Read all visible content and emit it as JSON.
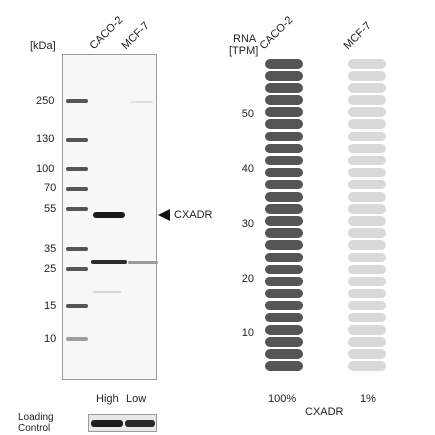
{
  "blot": {
    "kda_label": "[kDa]",
    "lanes": [
      "CACO-2",
      "MCF-7"
    ],
    "markers": [
      "250",
      "130",
      "100",
      "70",
      "55",
      "35",
      "25",
      "15",
      "10"
    ],
    "target_label": "CXADR",
    "lane_levels": [
      "High",
      "Low"
    ],
    "loading_control_line1": "Loading",
    "loading_control_line2": "Control"
  },
  "rna": {
    "title_line1": "RNA",
    "title_line2": "[TPM]",
    "cell_lines": [
      "CACO-2",
      "MCF-7"
    ],
    "axis_ticks": [
      "50",
      "40",
      "30",
      "20",
      "10"
    ],
    "caco2_percent": "100%",
    "mcf7_percent": "1%",
    "gene": "CXADR",
    "caco2_color": "#555555",
    "mcf7_color": "#d9d9d9",
    "pill_count": 26
  }
}
